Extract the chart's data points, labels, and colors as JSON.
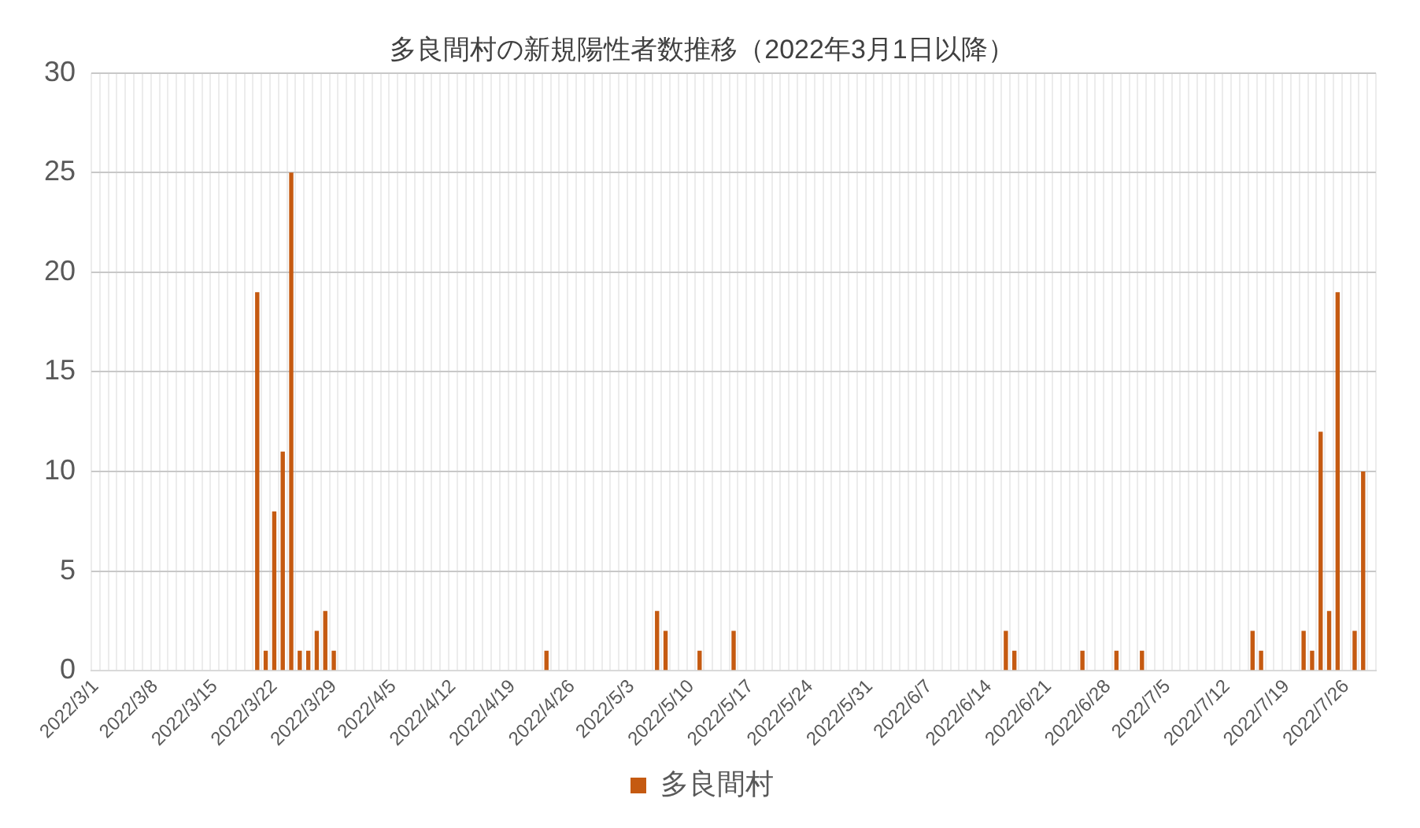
{
  "chart_data": {
    "type": "bar",
    "title": "多良間村の新規陽性者数推移（2022年3月1日以降）",
    "categories": [
      "2022/3/1",
      null,
      null,
      null,
      null,
      null,
      null,
      "2022/3/8",
      null,
      null,
      null,
      null,
      null,
      null,
      "2022/3/15",
      null,
      null,
      null,
      null,
      null,
      null,
      "2022/3/22",
      null,
      null,
      null,
      null,
      null,
      null,
      "2022/3/29",
      null,
      null,
      null,
      null,
      null,
      null,
      "2022/4/5",
      null,
      null,
      null,
      null,
      null,
      null,
      "2022/4/12",
      null,
      null,
      null,
      null,
      null,
      null,
      "2022/4/19",
      null,
      null,
      null,
      null,
      null,
      null,
      "2022/4/26",
      null,
      null,
      null,
      null,
      null,
      null,
      "2022/5/3",
      null,
      null,
      null,
      null,
      null,
      null,
      "2022/5/10",
      null,
      null,
      null,
      null,
      null,
      null,
      "2022/5/17",
      null,
      null,
      null,
      null,
      null,
      null,
      "2022/5/24",
      null,
      null,
      null,
      null,
      null,
      null,
      "2022/5/31",
      null,
      null,
      null,
      null,
      null,
      null,
      "2022/6/7",
      null,
      null,
      null,
      null,
      null,
      null,
      "2022/6/14",
      null,
      null,
      null,
      null,
      null,
      null,
      "2022/6/21",
      null,
      null,
      null,
      null,
      null,
      null,
      "2022/6/28",
      null,
      null,
      null,
      null,
      null,
      null,
      "2022/7/5",
      null,
      null,
      null,
      null,
      null,
      null,
      "2022/7/12",
      null,
      null,
      null,
      null,
      null,
      null,
      "2022/7/19",
      null,
      null,
      null,
      null,
      null,
      null,
      "2022/7/26",
      null,
      null,
      null
    ],
    "series": [
      {
        "name": "多良間村",
        "color": "#c55a11",
        "values": [
          0,
          0,
          0,
          0,
          0,
          0,
          0,
          0,
          0,
          0,
          0,
          0,
          0,
          0,
          0,
          0,
          0,
          0,
          0,
          19,
          1,
          8,
          11,
          25,
          1,
          1,
          2,
          3,
          1,
          0,
          0,
          0,
          0,
          0,
          0,
          0,
          0,
          0,
          0,
          0,
          0,
          0,
          0,
          0,
          0,
          0,
          0,
          0,
          0,
          0,
          0,
          0,
          0,
          1,
          0,
          0,
          0,
          0,
          0,
          0,
          0,
          0,
          0,
          0,
          0,
          0,
          3,
          2,
          0,
          0,
          0,
          1,
          0,
          0,
          0,
          2,
          0,
          0,
          0,
          0,
          0,
          0,
          0,
          0,
          0,
          0,
          0,
          0,
          0,
          0,
          0,
          0,
          0,
          0,
          0,
          0,
          0,
          0,
          0,
          0,
          0,
          0,
          0,
          0,
          0,
          0,
          0,
          2,
          1,
          0,
          0,
          0,
          0,
          0,
          0,
          0,
          1,
          0,
          0,
          0,
          1,
          0,
          0,
          1,
          0,
          0,
          0,
          0,
          0,
          0,
          0,
          0,
          0,
          0,
          0,
          0,
          2,
          1,
          0,
          0,
          0,
          0,
          2,
          1,
          12,
          3,
          19,
          0,
          2,
          10,
          0
        ]
      }
    ],
    "ylim": [
      0,
      30
    ],
    "yticks": [
      0,
      5,
      10,
      15,
      20,
      25,
      30
    ],
    "grid": true,
    "legend": "bottom"
  }
}
